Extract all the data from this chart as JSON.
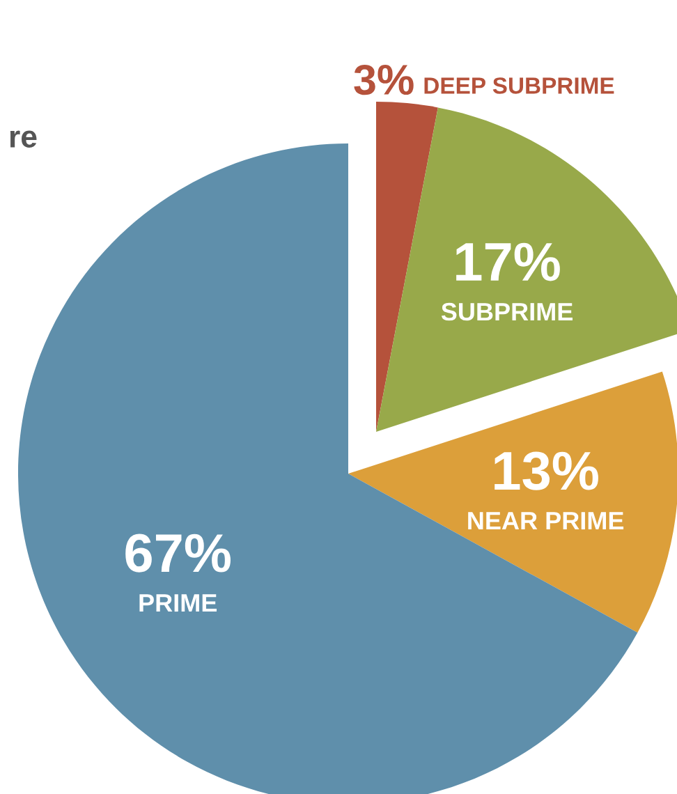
{
  "chart_data": {
    "type": "pie",
    "categories": [
      "DEEP SUBPRIME",
      "SUBPRIME",
      "NEAR PRIME",
      "PRIME"
    ],
    "values": [
      3,
      17,
      13,
      67
    ],
    "value_labels": [
      "3%",
      "17%",
      "13%",
      "67%"
    ],
    "colors": [
      "#b5523b",
      "#98a94a",
      "#dc9f3a",
      "#5f8fab"
    ],
    "annotations": [
      "re"
    ]
  }
}
